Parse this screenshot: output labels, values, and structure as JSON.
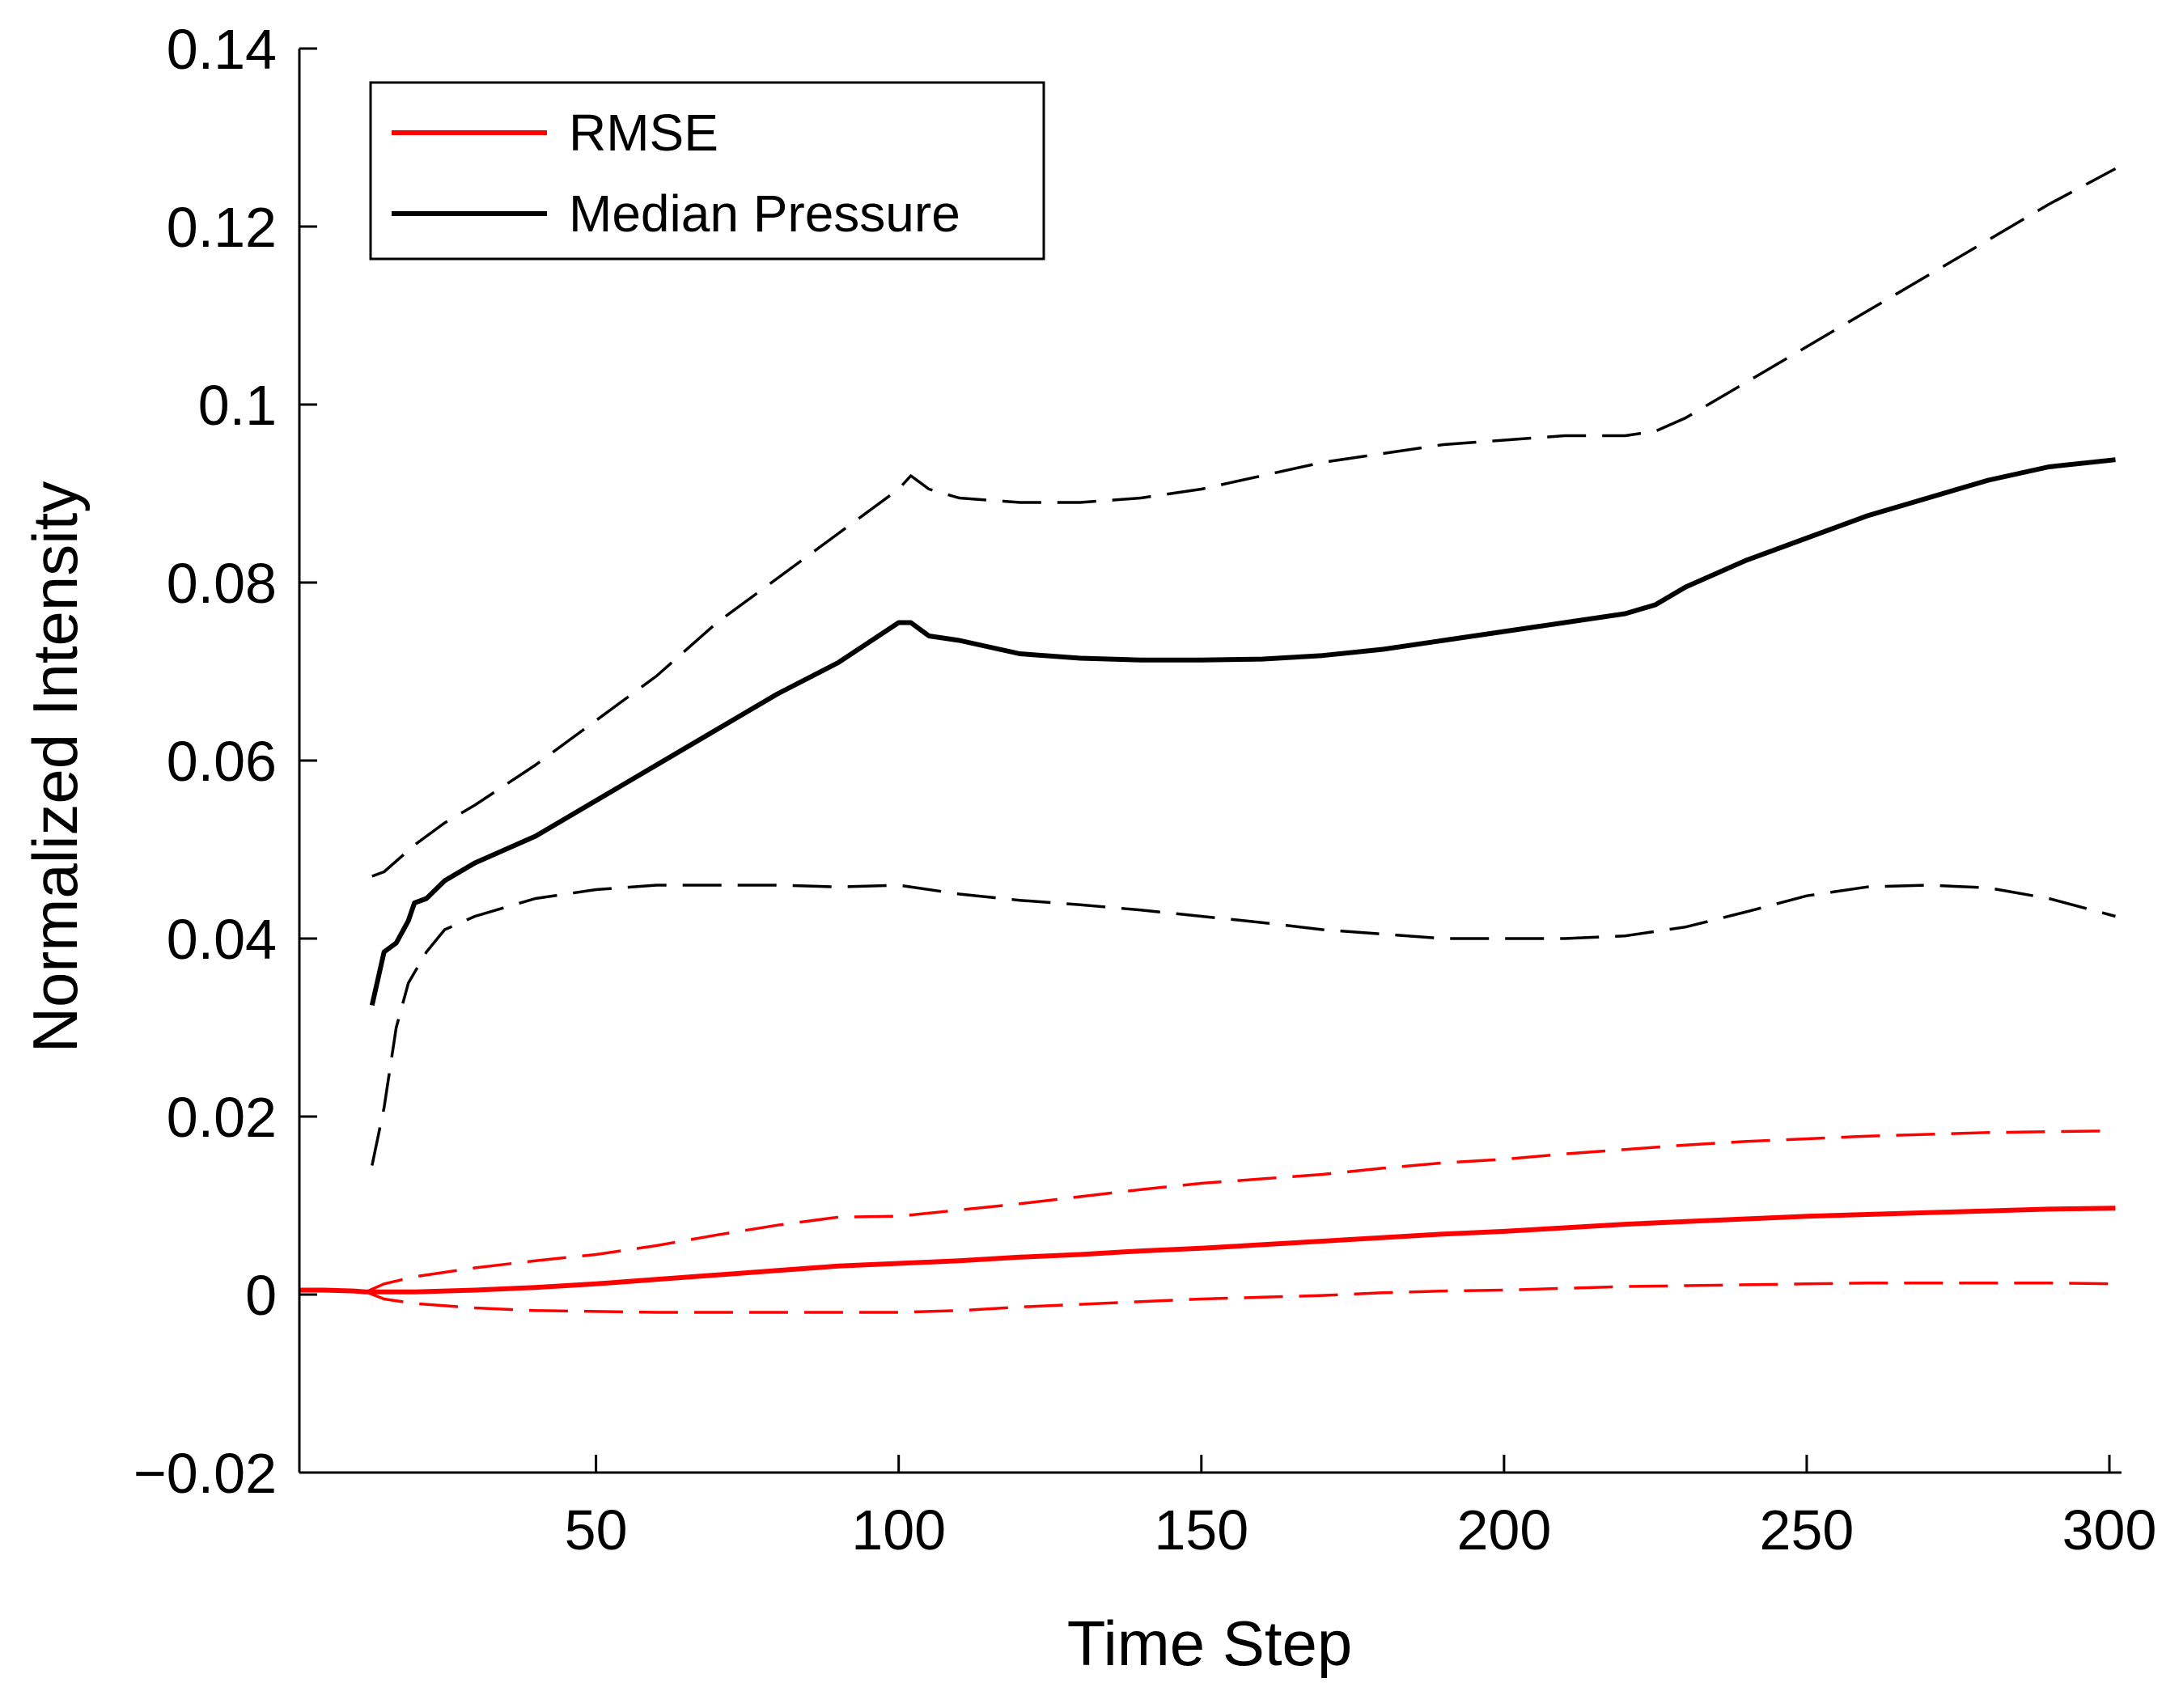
{
  "chart_data": {
    "type": "line",
    "title": "",
    "xlabel": "Time Step",
    "ylabel": "Normalized Intensity",
    "xlim": [
      1,
      302
    ],
    "ylim": [
      -0.02,
      0.14
    ],
    "xticks": [
      50,
      100,
      150,
      200,
      250,
      300
    ],
    "xtick_labels": [
      "50",
      "100",
      "150",
      "200",
      "250",
      "300"
    ],
    "yticks": [
      -0.02,
      0,
      0.02,
      0.04,
      0.06,
      0.08,
      0.1,
      0.12,
      0.14
    ],
    "ytick_labels": [
      "−0.02",
      "0",
      "0.02",
      "0.04",
      "0.06",
      "0.08",
      "0.1",
      "0.12",
      "0.14"
    ],
    "grid": false,
    "legend_position": "top-left",
    "legend": [
      {
        "label": "RMSE",
        "color": "#ff0000"
      },
      {
        "label": "Median Pressure",
        "color": "#000000"
      }
    ],
    "series": [
      {
        "name": "Median Pressure",
        "color": "#000000",
        "dash": "solid",
        "x": [
          13,
          15,
          17,
          19,
          20,
          22,
          25,
          30,
          35,
          40,
          50,
          60,
          70,
          80,
          90,
          100,
          102,
          105,
          110,
          120,
          130,
          140,
          150,
          160,
          170,
          180,
          190,
          200,
          210,
          220,
          225,
          230,
          240,
          250,
          260,
          270,
          280,
          290,
          301
        ],
        "y": [
          0.0325,
          0.0385,
          0.0395,
          0.042,
          0.044,
          0.0445,
          0.0465,
          0.0485,
          0.05,
          0.0515,
          0.0555,
          0.0595,
          0.0635,
          0.0675,
          0.071,
          0.0755,
          0.0755,
          0.074,
          0.0735,
          0.072,
          0.0715,
          0.0713,
          0.0713,
          0.0714,
          0.0718,
          0.0725,
          0.0735,
          0.0745,
          0.0755,
          0.0765,
          0.0775,
          0.0795,
          0.0825,
          0.085,
          0.0875,
          0.0895,
          0.0915,
          0.093,
          0.0938
        ]
      },
      {
        "name": "",
        "color": "#000000",
        "dash": "dashed",
        "x": [
          13,
          15,
          20,
          25,
          30,
          40,
          50,
          60,
          70,
          80,
          90,
          100,
          102,
          105,
          110,
          120,
          130,
          140,
          150,
          160,
          170,
          180,
          190,
          200,
          210,
          220,
          225,
          230,
          240,
          250,
          260,
          270,
          280,
          290,
          301
        ],
        "y": [
          0.047,
          0.0475,
          0.0505,
          0.053,
          0.055,
          0.0595,
          0.0645,
          0.0695,
          0.0755,
          0.0805,
          0.0855,
          0.0905,
          0.092,
          0.0905,
          0.0895,
          0.089,
          0.089,
          0.0895,
          0.0905,
          0.092,
          0.0935,
          0.0945,
          0.0955,
          0.096,
          0.0965,
          0.0965,
          0.097,
          0.0985,
          0.1025,
          0.1065,
          0.1105,
          0.1145,
          0.1185,
          0.1225,
          0.1265
        ]
      },
      {
        "name": "",
        "color": "#000000",
        "dash": "dashed",
        "x": [
          13,
          15,
          17,
          19,
          22,
          25,
          30,
          40,
          50,
          60,
          70,
          80,
          90,
          100,
          110,
          120,
          130,
          140,
          150,
          160,
          170,
          180,
          190,
          200,
          210,
          220,
          230,
          240,
          250,
          260,
          270,
          280,
          290,
          301
        ],
        "y": [
          0.0145,
          0.021,
          0.03,
          0.035,
          0.0385,
          0.041,
          0.0425,
          0.0445,
          0.0455,
          0.046,
          0.046,
          0.046,
          0.0458,
          0.046,
          0.045,
          0.0443,
          0.0438,
          0.0432,
          0.0425,
          0.0418,
          0.041,
          0.0405,
          0.04,
          0.04,
          0.04,
          0.0403,
          0.0413,
          0.043,
          0.0448,
          0.0458,
          0.046,
          0.0457,
          0.0445,
          0.0425
        ]
      },
      {
        "name": "RMSE",
        "color": "#ff0000",
        "dash": "solid",
        "x": [
          1,
          5,
          10,
          12,
          15,
          20,
          30,
          40,
          50,
          60,
          70,
          80,
          90,
          100,
          110,
          120,
          130,
          140,
          150,
          160,
          170,
          180,
          190,
          200,
          210,
          220,
          230,
          240,
          250,
          260,
          270,
          280,
          290,
          301
        ],
        "y": [
          0.0005,
          0.0005,
          0.0004,
          0.0003,
          0.0003,
          0.0003,
          0.0005,
          0.0008,
          0.0012,
          0.0017,
          0.0022,
          0.0027,
          0.0032,
          0.0035,
          0.0038,
          0.0042,
          0.0045,
          0.0049,
          0.0052,
          0.0056,
          0.006,
          0.0064,
          0.0068,
          0.0071,
          0.0075,
          0.0079,
          0.0082,
          0.0085,
          0.0088,
          0.009,
          0.0092,
          0.0094,
          0.0096,
          0.0097
        ]
      },
      {
        "name": "",
        "color": "#ff0000",
        "dash": "dashed",
        "x": [
          12,
          15,
          20,
          30,
          40,
          50,
          60,
          70,
          80,
          90,
          100,
          110,
          120,
          130,
          140,
          150,
          160,
          170,
          180,
          190,
          200,
          210,
          220,
          230,
          240,
          250,
          260,
          270,
          280,
          290,
          301
        ],
        "y": [
          0.0003,
          0.0012,
          0.002,
          0.003,
          0.0038,
          0.0045,
          0.0055,
          0.0067,
          0.0078,
          0.0087,
          0.0088,
          0.0095,
          0.0102,
          0.011,
          0.0118,
          0.0125,
          0.013,
          0.0135,
          0.0142,
          0.0148,
          0.0152,
          0.0158,
          0.0163,
          0.0168,
          0.0172,
          0.0175,
          0.0178,
          0.018,
          0.0182,
          0.0183,
          0.0184
        ]
      },
      {
        "name": "",
        "color": "#ff0000",
        "dash": "dashed",
        "x": [
          12,
          15,
          20,
          30,
          40,
          50,
          60,
          70,
          80,
          90,
          100,
          110,
          120,
          130,
          140,
          150,
          160,
          170,
          180,
          190,
          200,
          210,
          220,
          230,
          240,
          250,
          260,
          270,
          280,
          290,
          301
        ],
        "y": [
          0.0003,
          -0.0005,
          -0.001,
          -0.0015,
          -0.0018,
          -0.0019,
          -0.002,
          -0.002,
          -0.002,
          -0.002,
          -0.002,
          -0.0018,
          -0.0014,
          -0.0011,
          -0.0008,
          -0.0005,
          -0.0003,
          -0.0001,
          0.0002,
          0.0004,
          0.0005,
          0.0007,
          0.0009,
          0.001,
          0.0011,
          0.0012,
          0.0013,
          0.0013,
          0.0013,
          0.0013,
          0.0012
        ]
      }
    ]
  }
}
